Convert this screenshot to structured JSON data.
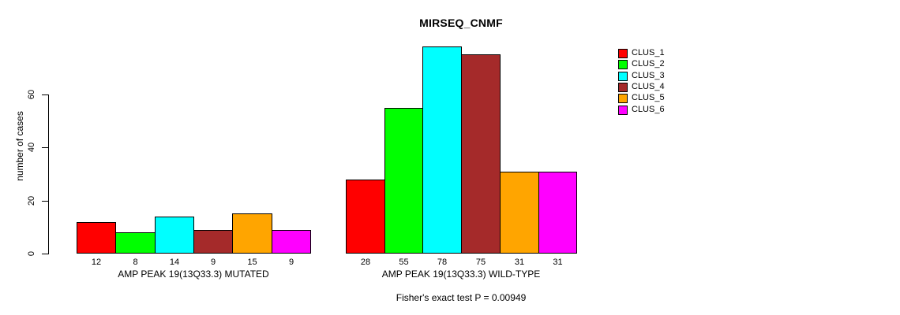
{
  "chart_data": {
    "type": "bar",
    "title": "MIRSEQ_CNMF",
    "ylabel": "number of cases",
    "xlabel": "",
    "yticks": [
      0,
      20,
      40,
      60
    ],
    "ylim": [
      0,
      80
    ],
    "grid": false,
    "legend_position": "top-right",
    "legend": [
      {
        "name": "CLUS_1",
        "color": "#FF0000"
      },
      {
        "name": "CLUS_2",
        "color": "#00FF00"
      },
      {
        "name": "CLUS_3",
        "color": "#00FFFF"
      },
      {
        "name": "CLUS_4",
        "color": "#A52A2A"
      },
      {
        "name": "CLUS_5",
        "color": "#FFA500"
      },
      {
        "name": "CLUS_6",
        "color": "#FF00FF"
      }
    ],
    "groups": [
      {
        "label": "AMP PEAK 19(13Q33.3) MUTATED",
        "values": [
          12,
          8,
          14,
          9,
          15,
          9
        ]
      },
      {
        "label": "AMP PEAK 19(13Q33.3) WILD-TYPE",
        "values": [
          28,
          55,
          78,
          75,
          31,
          31
        ]
      }
    ],
    "annotation": "Fisher's exact test P = 0.00949"
  }
}
